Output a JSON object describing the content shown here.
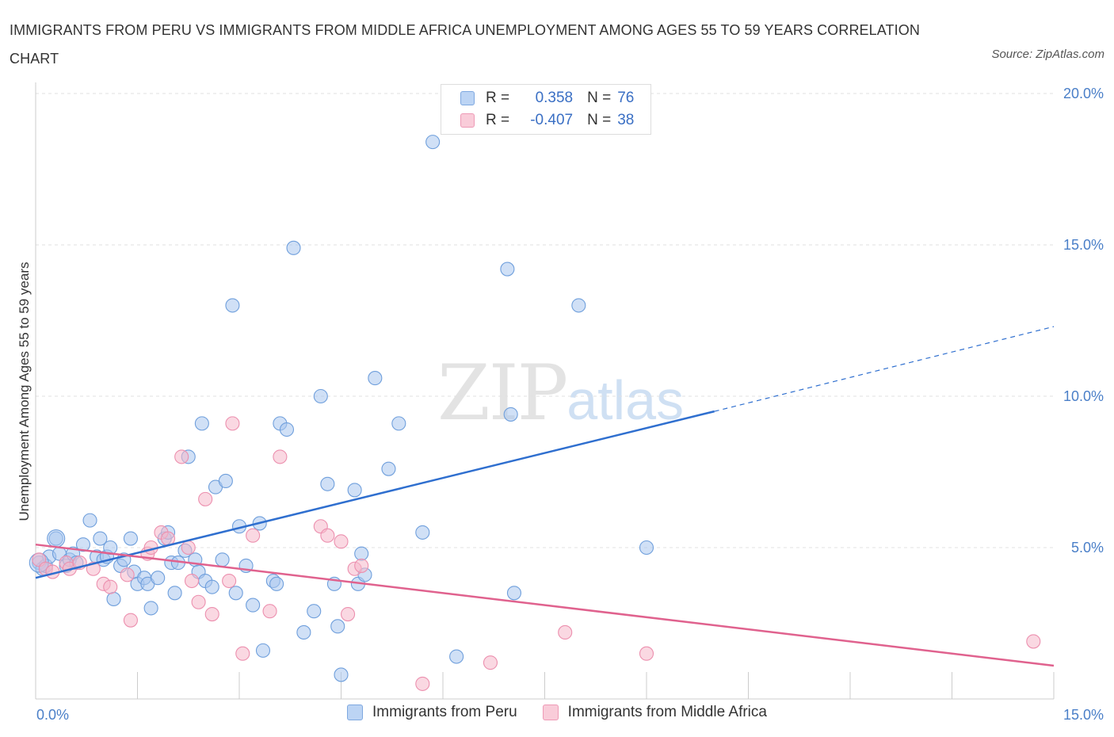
{
  "title": "IMMIGRANTS FROM PERU VS IMMIGRANTS FROM MIDDLE AFRICA UNEMPLOYMENT AMONG AGES 55 TO 59 YEARS CORRELATION CHART",
  "source": "Source: ZipAtlas.com",
  "watermark": {
    "zip": "ZIP",
    "atlas": "atlas"
  },
  "legend": {
    "r_label": "R =",
    "n_label": "N =",
    "peru": {
      "r": "0.358",
      "n": "76",
      "color": "#a9c7ef"
    },
    "africa": {
      "r": "-0.407",
      "n": "38",
      "color": "#f5b8cb"
    }
  },
  "chart_data": {
    "type": "scatter",
    "title": "IMMIGRANTS FROM PERU VS IMMIGRANTS FROM MIDDLE AFRICA UNEMPLOYMENT AMONG AGES 55 TO 59 YEARS CORRELATION CHART",
    "xlabel": "",
    "ylabel": "Unemployment Among Ages 55 to 59 years",
    "xlim": [
      0,
      15
    ],
    "ylim": [
      0,
      20
    ],
    "x_tick_labels": [
      "0.0%",
      "15.0%"
    ],
    "y_ticks": [
      5,
      10,
      15,
      20
    ],
    "y_tick_labels": [
      "5.0%",
      "10.0%",
      "15.0%",
      "20.0%"
    ],
    "grid": true,
    "series": [
      {
        "name": "Immigrants from Peru",
        "color": "#6f9fdc",
        "fill": "#a9c7ef",
        "trend": {
          "x0": 0,
          "y0": 4.0,
          "x1": 10.0,
          "y1": 9.5,
          "dash_to_x": 15,
          "dash_to_y": 12.3,
          "color": "#2f6fcf"
        },
        "points": [
          [
            0.05,
            4.5
          ],
          [
            0.1,
            4.3
          ],
          [
            0.15,
            4.4
          ],
          [
            0.2,
            4.7
          ],
          [
            0.3,
            5.3
          ],
          [
            0.35,
            4.8
          ],
          [
            0.45,
            4.4
          ],
          [
            0.5,
            4.6
          ],
          [
            0.55,
            4.8
          ],
          [
            0.6,
            4.5
          ],
          [
            0.7,
            5.1
          ],
          [
            0.8,
            5.9
          ],
          [
            0.9,
            4.7
          ],
          [
            0.95,
            5.3
          ],
          [
            1.0,
            4.6
          ],
          [
            1.05,
            4.7
          ],
          [
            1.1,
            5.0
          ],
          [
            1.15,
            3.3
          ],
          [
            1.25,
            4.4
          ],
          [
            1.3,
            4.6
          ],
          [
            1.4,
            5.3
          ],
          [
            1.45,
            4.2
          ],
          [
            1.5,
            3.8
          ],
          [
            1.6,
            4.0
          ],
          [
            1.65,
            3.8
          ],
          [
            1.7,
            3.0
          ],
          [
            1.8,
            4.0
          ],
          [
            1.9,
            5.3
          ],
          [
            1.95,
            5.5
          ],
          [
            2.0,
            4.5
          ],
          [
            2.05,
            3.5
          ],
          [
            2.1,
            4.5
          ],
          [
            2.2,
            4.9
          ],
          [
            2.25,
            8.0
          ],
          [
            2.35,
            4.6
          ],
          [
            2.4,
            4.2
          ],
          [
            2.45,
            9.1
          ],
          [
            2.5,
            3.9
          ],
          [
            2.6,
            3.7
          ],
          [
            2.65,
            7.0
          ],
          [
            2.75,
            4.6
          ],
          [
            2.8,
            7.2
          ],
          [
            2.9,
            13.0
          ],
          [
            2.95,
            3.5
          ],
          [
            3.0,
            5.7
          ],
          [
            3.1,
            4.4
          ],
          [
            3.2,
            3.1
          ],
          [
            3.3,
            5.8
          ],
          [
            3.35,
            1.6
          ],
          [
            3.5,
            3.9
          ],
          [
            3.55,
            3.8
          ],
          [
            3.6,
            9.1
          ],
          [
            3.7,
            8.9
          ],
          [
            3.8,
            14.9
          ],
          [
            3.95,
            2.2
          ],
          [
            4.1,
            2.9
          ],
          [
            4.2,
            10.0
          ],
          [
            4.3,
            7.1
          ],
          [
            4.4,
            3.8
          ],
          [
            4.45,
            2.4
          ],
          [
            4.5,
            0.8
          ],
          [
            4.7,
            6.9
          ],
          [
            4.75,
            3.8
          ],
          [
            4.8,
            4.8
          ],
          [
            4.85,
            4.1
          ],
          [
            5.0,
            10.6
          ],
          [
            5.2,
            7.6
          ],
          [
            5.35,
            9.1
          ],
          [
            5.7,
            5.5
          ],
          [
            5.85,
            18.4
          ],
          [
            6.2,
            1.4
          ],
          [
            6.95,
            14.2
          ],
          [
            7.0,
            9.4
          ],
          [
            7.05,
            3.5
          ],
          [
            8.0,
            13.0
          ],
          [
            9.0,
            5.0
          ]
        ]
      },
      {
        "name": "Immigrants from Middle Africa",
        "color": "#ec8fae",
        "fill": "#f5b8cb",
        "trend": {
          "x0": 0,
          "y0": 5.1,
          "x1": 15,
          "y1": 1.1,
          "color": "#e0628e"
        },
        "points": [
          [
            0.05,
            4.6
          ],
          [
            0.15,
            4.3
          ],
          [
            0.25,
            4.2
          ],
          [
            0.45,
            4.5
          ],
          [
            0.5,
            4.3
          ],
          [
            0.65,
            4.5
          ],
          [
            0.85,
            4.3
          ],
          [
            1.0,
            3.8
          ],
          [
            1.1,
            3.7
          ],
          [
            1.35,
            4.1
          ],
          [
            1.4,
            2.6
          ],
          [
            1.65,
            4.8
          ],
          [
            1.7,
            5.0
          ],
          [
            1.85,
            5.5
          ],
          [
            1.95,
            5.3
          ],
          [
            2.15,
            8.0
          ],
          [
            2.25,
            5.0
          ],
          [
            2.3,
            3.9
          ],
          [
            2.4,
            3.2
          ],
          [
            2.5,
            6.6
          ],
          [
            2.6,
            2.8
          ],
          [
            2.85,
            3.9
          ],
          [
            2.9,
            9.1
          ],
          [
            3.05,
            1.5
          ],
          [
            3.2,
            5.4
          ],
          [
            3.45,
            2.9
          ],
          [
            3.6,
            8.0
          ],
          [
            4.2,
            5.7
          ],
          [
            4.3,
            5.4
          ],
          [
            4.5,
            5.2
          ],
          [
            4.6,
            2.8
          ],
          [
            4.7,
            4.3
          ],
          [
            4.8,
            4.4
          ],
          [
            5.7,
            0.5
          ],
          [
            6.7,
            1.2
          ],
          [
            7.8,
            2.2
          ],
          [
            9.0,
            1.5
          ],
          [
            14.7,
            1.9
          ]
        ]
      }
    ]
  },
  "bottom_legend": [
    "Immigrants from Peru",
    "Immigrants from Middle Africa"
  ]
}
